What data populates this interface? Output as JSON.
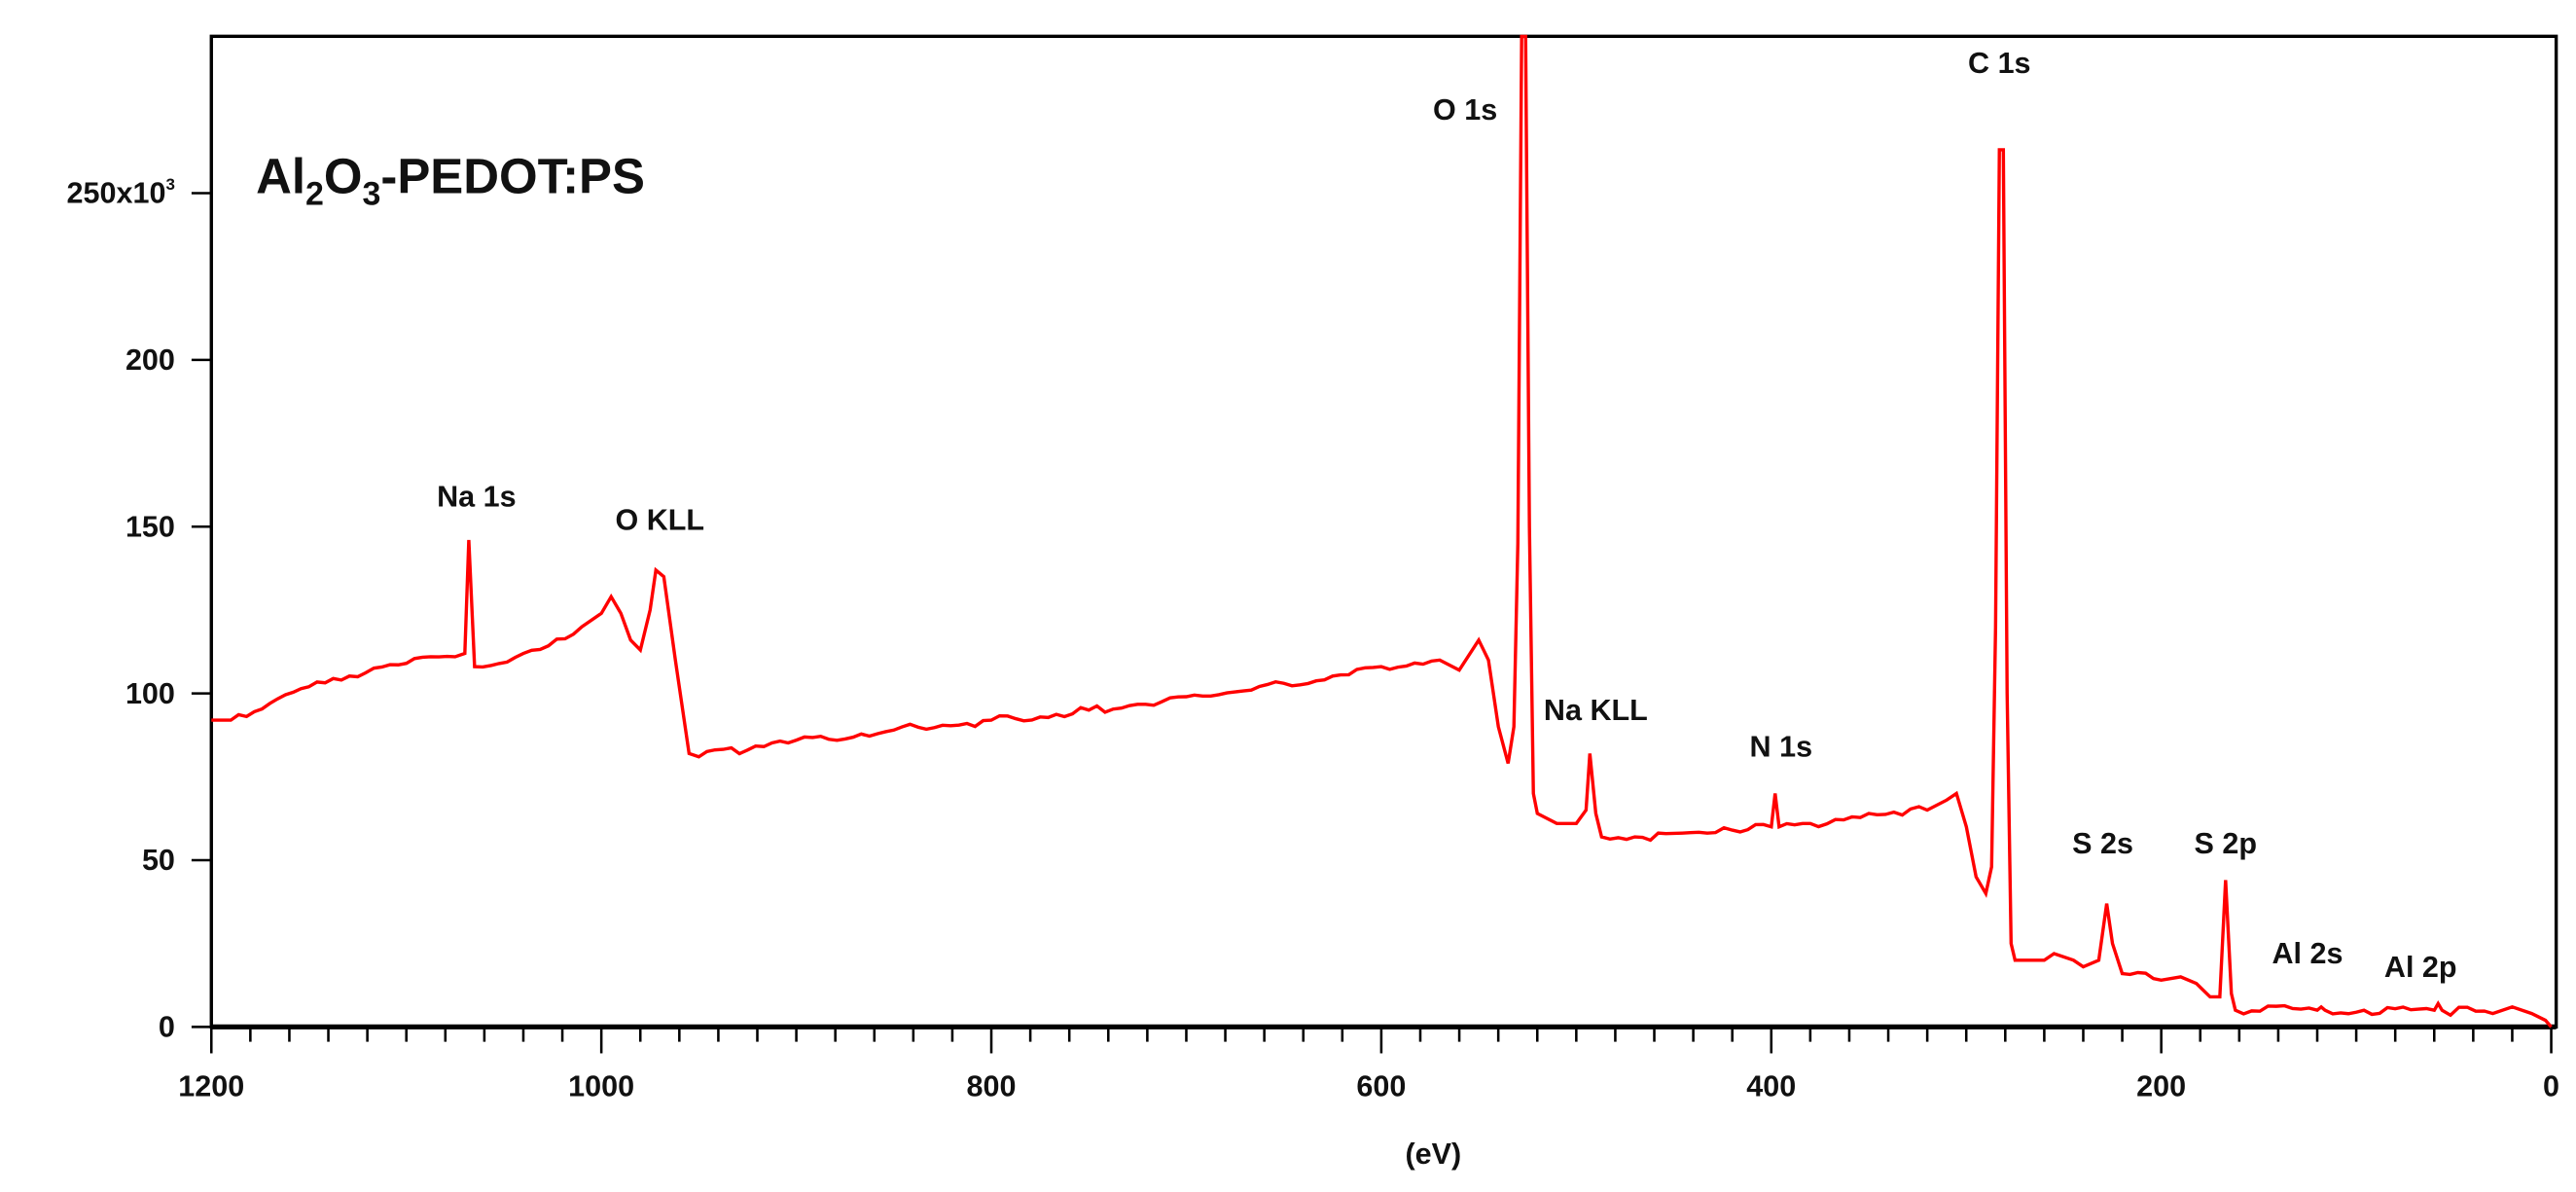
{
  "chart_data": {
    "type": "line",
    "title": "Al2O3-PEDOT:PS",
    "title_parts": {
      "a": "Al",
      "b": "2",
      "c": "O",
      "d": "3",
      "e": "-PEDOT:PS"
    },
    "xlabel": "(eV)",
    "ylabel": "",
    "xlim": [
      1200,
      0
    ],
    "ylim": [
      0,
      297
    ],
    "x_reversed": true,
    "x_ticks": [
      1200,
      1000,
      800,
      600,
      400,
      200,
      0
    ],
    "x_tick_labels": [
      "1200",
      "1000",
      "800",
      "600",
      "400",
      "200",
      "0"
    ],
    "x_minor_step": 20,
    "y_ticks": [
      0,
      50,
      100,
      150,
      200,
      250
    ],
    "y_tick_labels": [
      "0",
      "50",
      "100",
      "150",
      "200",
      "250x10"
    ],
    "y_multiplier_exponent": "3",
    "grid": false,
    "line_color": "#ff0000",
    "series": [
      {
        "points": [
          [
            1200,
            92
          ],
          [
            1190,
            92
          ],
          [
            1170,
            97
          ],
          [
            1150,
            102
          ],
          [
            1125,
            105
          ],
          [
            1100,
            109
          ],
          [
            1075,
            111
          ],
          [
            1070,
            112
          ],
          [
            1068,
            146
          ],
          [
            1065,
            108
          ],
          [
            1040,
            112
          ],
          [
            1010,
            120
          ],
          [
            1000,
            124
          ],
          [
            995,
            129
          ],
          [
            990,
            124
          ],
          [
            985,
            116
          ],
          [
            980,
            113
          ],
          [
            975,
            125
          ],
          [
            972,
            137
          ],
          [
            968,
            135
          ],
          [
            962,
            110
          ],
          [
            955,
            82
          ],
          [
            950,
            81
          ],
          [
            925,
            83
          ],
          [
            900,
            86
          ],
          [
            850,
            89
          ],
          [
            800,
            92
          ],
          [
            750,
            95
          ],
          [
            700,
            99
          ],
          [
            650,
            103
          ],
          [
            600,
            108
          ],
          [
            570,
            110
          ],
          [
            560,
            107
          ],
          [
            550,
            116
          ],
          [
            545,
            110
          ],
          [
            540,
            90
          ],
          [
            535,
            79
          ],
          [
            532,
            90
          ],
          [
            530,
            145
          ],
          [
            528,
            297
          ],
          [
            526,
            297
          ],
          [
            524,
            150
          ],
          [
            522,
            70
          ],
          [
            520,
            64
          ],
          [
            510,
            61
          ],
          [
            500,
            61
          ],
          [
            495,
            65
          ],
          [
            493,
            82
          ],
          [
            490,
            64
          ],
          [
            487,
            57
          ],
          [
            470,
            57
          ],
          [
            450,
            58
          ],
          [
            420,
            59
          ],
          [
            400,
            60
          ],
          [
            398,
            70
          ],
          [
            396,
            60
          ],
          [
            380,
            61
          ],
          [
            350,
            64
          ],
          [
            320,
            65
          ],
          [
            310,
            68
          ],
          [
            305,
            70
          ],
          [
            300,
            60
          ],
          [
            295,
            45
          ],
          [
            290,
            40
          ],
          [
            287,
            48
          ],
          [
            285,
            120
          ],
          [
            283,
            263
          ],
          [
            281,
            263
          ],
          [
            279,
            100
          ],
          [
            277,
            25
          ],
          [
            275,
            20
          ],
          [
            260,
            20
          ],
          [
            255,
            22
          ],
          [
            245,
            20
          ],
          [
            240,
            18
          ],
          [
            232,
            20
          ],
          [
            228,
            37
          ],
          [
            225,
            25
          ],
          [
            220,
            16
          ],
          [
            200,
            14
          ],
          [
            190,
            15
          ],
          [
            182,
            13
          ],
          [
            175,
            9
          ],
          [
            170,
            9
          ],
          [
            167,
            44
          ],
          [
            164,
            10
          ],
          [
            162,
            5
          ],
          [
            120,
            5
          ],
          [
            118,
            6
          ],
          [
            116,
            5
          ],
          [
            60,
            5
          ],
          [
            58,
            7
          ],
          [
            56,
            5
          ],
          [
            30,
            4
          ],
          [
            20,
            6
          ],
          [
            10,
            4
          ],
          [
            3,
            2
          ],
          [
            0,
            0
          ]
        ]
      }
    ],
    "annotations": [
      {
        "text": "Na 1s",
        "x": 1064,
        "y": 156
      },
      {
        "text": "O KLL",
        "x": 970,
        "y": 149
      },
      {
        "text": "O 1s",
        "x": 557,
        "y": 272
      },
      {
        "text": "C 1s",
        "x": 283,
        "y": 286
      },
      {
        "text": "Na KLL",
        "x": 490,
        "y": 92
      },
      {
        "text": "N 1s",
        "x": 395,
        "y": 81
      },
      {
        "text": "S 2s",
        "x": 230,
        "y": 52
      },
      {
        "text": "S 2p",
        "x": 167,
        "y": 52
      },
      {
        "text": "Al 2s",
        "x": 125,
        "y": 19
      },
      {
        "text": "Al 2p",
        "x": 67,
        "y": 15
      }
    ]
  }
}
